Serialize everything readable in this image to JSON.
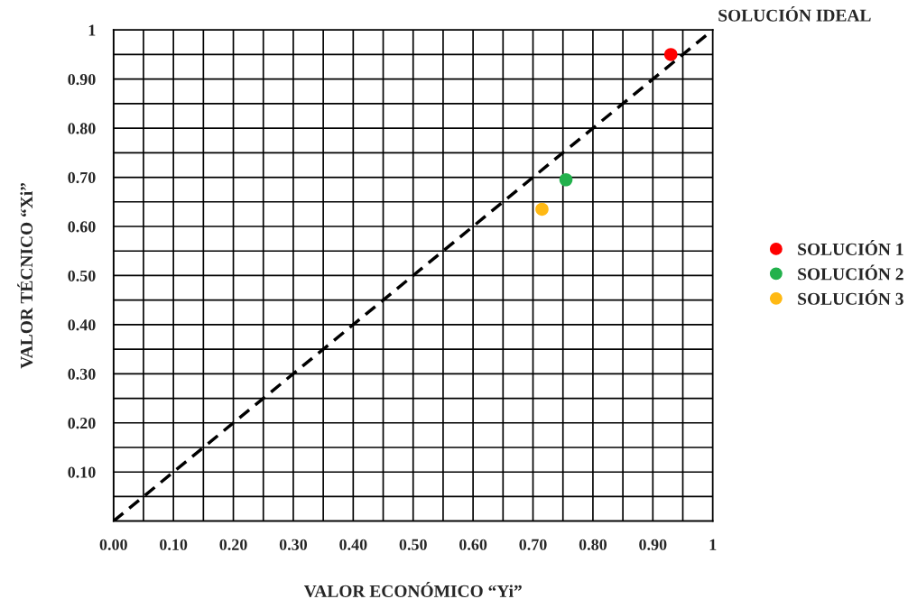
{
  "chart_data": {
    "type": "scatter",
    "xlabel": "VALOR ECONÓMICO “Yi”",
    "ylabel": "VALOR TÉCNICO “Xi”",
    "xlim": [
      0,
      1
    ],
    "ylim": [
      0,
      1
    ],
    "xticks": [
      {
        "value": 0,
        "label": "0.00"
      },
      {
        "value": 0.05,
        "label": null
      },
      {
        "value": 0.1,
        "label": "0.10"
      },
      {
        "value": 0.15,
        "label": null
      },
      {
        "value": 0.2,
        "label": "0.20"
      },
      {
        "value": 0.25,
        "label": null
      },
      {
        "value": 0.3,
        "label": "0.30"
      },
      {
        "value": 0.35,
        "label": null
      },
      {
        "value": 0.4,
        "label": "0.40"
      },
      {
        "value": 0.45,
        "label": null
      },
      {
        "value": 0.5,
        "label": "0.50"
      },
      {
        "value": 0.55,
        "label": null
      },
      {
        "value": 0.6,
        "label": "0.60"
      },
      {
        "value": 0.65,
        "label": null
      },
      {
        "value": 0.7,
        "label": "0.70"
      },
      {
        "value": 0.75,
        "label": null
      },
      {
        "value": 0.8,
        "label": "0.80"
      },
      {
        "value": 0.85,
        "label": null
      },
      {
        "value": 0.9,
        "label": "0.90"
      },
      {
        "value": 0.95,
        "label": null
      },
      {
        "value": 1,
        "label": "1"
      }
    ],
    "yticks": [
      {
        "value": 0,
        "label": null
      },
      {
        "value": 0.05,
        "label": null
      },
      {
        "value": 0.1,
        "label": "0.10"
      },
      {
        "value": 0.15,
        "label": null
      },
      {
        "value": 0.2,
        "label": "0.20"
      },
      {
        "value": 0.25,
        "label": null
      },
      {
        "value": 0.3,
        "label": "0.30"
      },
      {
        "value": 0.35,
        "label": null
      },
      {
        "value": 0.4,
        "label": "0.40"
      },
      {
        "value": 0.45,
        "label": null
      },
      {
        "value": 0.5,
        "label": "0.50"
      },
      {
        "value": 0.55,
        "label": null
      },
      {
        "value": 0.6,
        "label": "0.60"
      },
      {
        "value": 0.65,
        "label": null
      },
      {
        "value": 0.7,
        "label": "0.70"
      },
      {
        "value": 0.75,
        "label": null
      },
      {
        "value": 0.8,
        "label": "0.80"
      },
      {
        "value": 0.85,
        "label": null
      },
      {
        "value": 0.9,
        "label": "0.90"
      },
      {
        "value": 0.95,
        "label": null
      },
      {
        "value": 1,
        "label": "1"
      }
    ],
    "grid": true,
    "legend": "right",
    "series": [
      {
        "type": "line",
        "color": "#000000",
        "line_style": "dashed",
        "x": [
          0,
          1
        ],
        "values": [
          0,
          1
        ]
      },
      {
        "name": "SOLUCIÓN 1",
        "color": "#ff0000",
        "marker": "circle",
        "x": [
          0.93
        ],
        "values": [
          0.95
        ]
      },
      {
        "name": "SOLUCIÓN 2",
        "color": "#22b14c",
        "marker": "circle",
        "x": [
          0.755
        ],
        "values": [
          0.695
        ]
      },
      {
        "name": "SOLUCIÓN 3",
        "color": "#ffb914",
        "marker": "circle",
        "x": [
          0.715
        ],
        "values": [
          0.635
        ]
      }
    ],
    "annotations": [
      {
        "text": "SOLUCIÓN IDEAL",
        "x": 1,
        "y": 1
      }
    ]
  }
}
